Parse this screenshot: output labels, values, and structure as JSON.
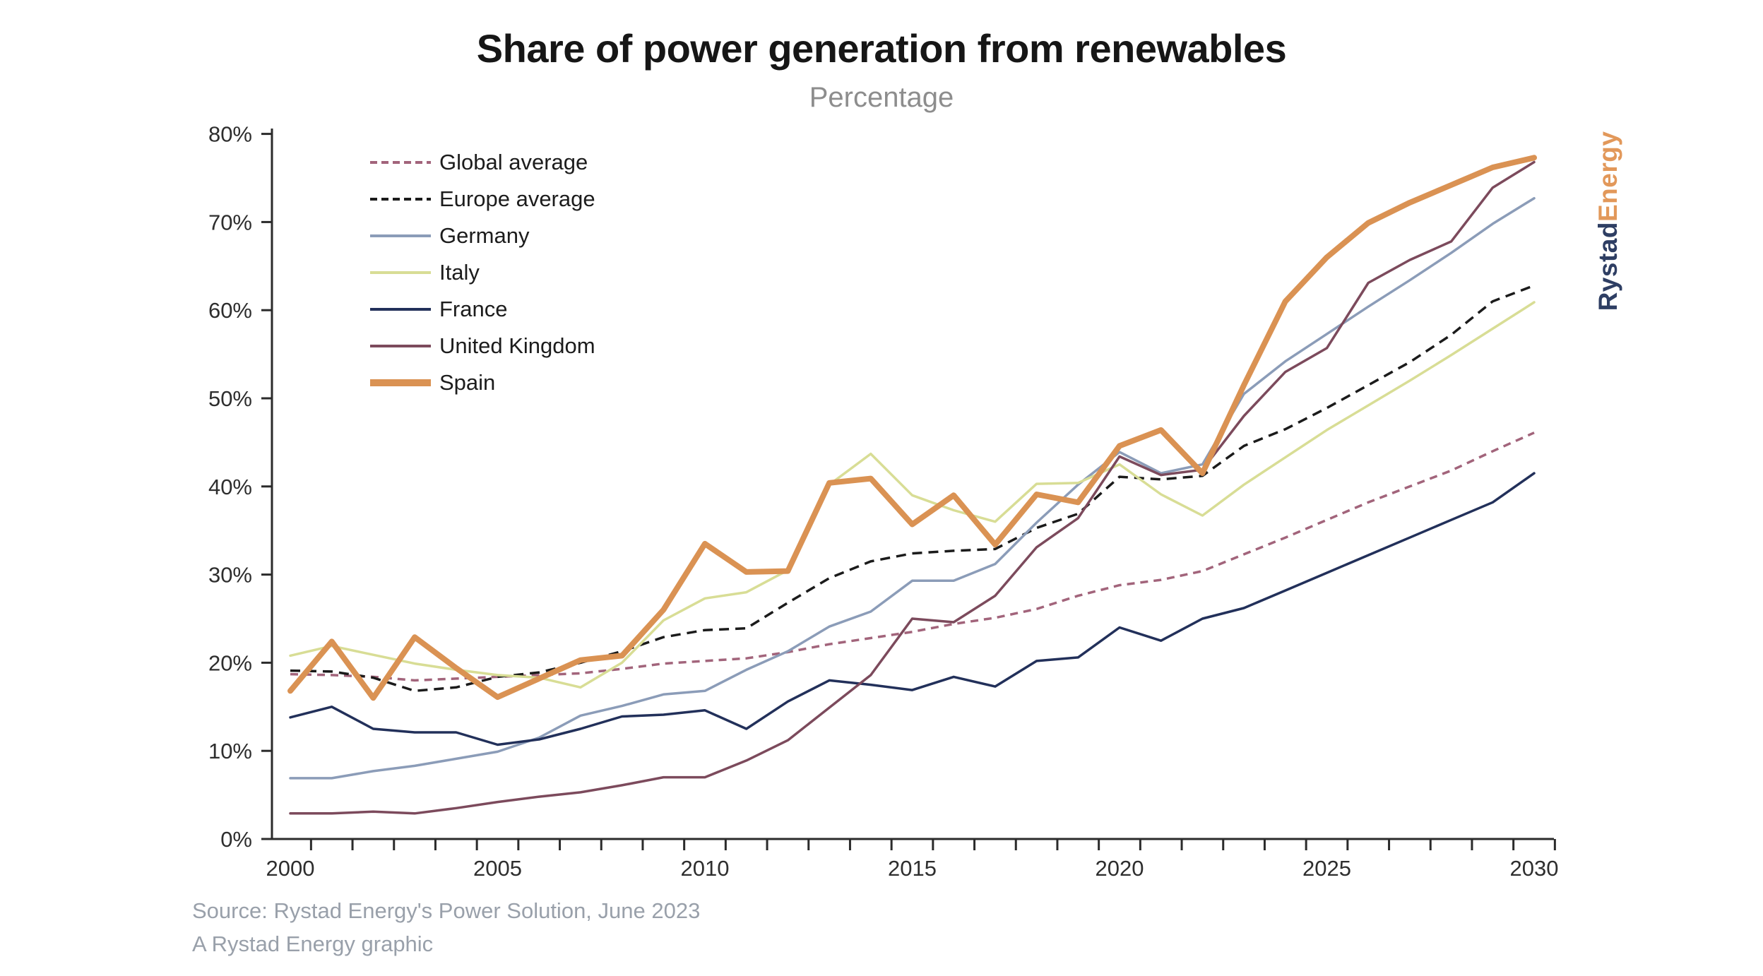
{
  "title": "Share of power generation from renewables",
  "subtitle": "Percentage",
  "source": {
    "line1": "Source: Rystad Energy's Power Solution, June 2023",
    "line2": "A Rystad Energy graphic"
  },
  "logo": {
    "part1": "Rystad",
    "part2": "Energy",
    "part1_color": "#2e3e63",
    "part2_color": "#e2985a"
  },
  "chart_data": {
    "type": "line",
    "title": "Share of power generation from renewables",
    "subtitle": "Percentage",
    "y_unit": "%",
    "ylim": [
      0,
      80
    ],
    "ytick_step": 10,
    "grid": false,
    "legend_position": "top-left-inside",
    "x": [
      2000,
      2001,
      2002,
      2003,
      2004,
      2005,
      2006,
      2007,
      2008,
      2009,
      2010,
      2011,
      2012,
      2013,
      2014,
      2015,
      2016,
      2017,
      2018,
      2019,
      2020,
      2021,
      2022,
      2023,
      2024,
      2025,
      2026,
      2027,
      2028,
      2029,
      2030
    ],
    "xticks": [
      2000,
      2005,
      2010,
      2015,
      2020,
      2025,
      2030
    ],
    "series": [
      {
        "name": "Global average",
        "color": "#a2647b",
        "style": "dashed",
        "width": 3.5,
        "values": [
          18.7,
          18.6,
          18.4,
          18.0,
          18.2,
          18.4,
          18.6,
          18.8,
          19.3,
          19.9,
          20.2,
          20.5,
          21.2,
          22.1,
          22.8,
          23.5,
          24.4,
          25.1,
          26.1,
          27.6,
          28.8,
          29.4,
          30.4,
          32.3,
          34.2,
          36.2,
          38.2,
          40.0,
          41.8,
          44.0,
          46.1
        ]
      },
      {
        "name": "Europe average",
        "color": "#1b1b1b",
        "style": "dashed",
        "width": 3.5,
        "values": [
          19.1,
          19.0,
          18.3,
          16.8,
          17.2,
          18.4,
          18.9,
          20.0,
          21.3,
          22.9,
          23.7,
          23.9,
          26.8,
          29.6,
          31.5,
          32.4,
          32.7,
          32.9,
          35.3,
          36.9,
          41.1,
          40.8,
          41.2,
          44.6,
          46.5,
          48.9,
          51.5,
          54.1,
          57.2,
          61.0,
          62.8
        ]
      },
      {
        "name": "Germany",
        "color": "#8b9cb8",
        "style": "solid",
        "width": 3.5,
        "values": [
          6.9,
          6.9,
          7.7,
          8.3,
          9.1,
          9.9,
          11.5,
          14.0,
          15.1,
          16.4,
          16.8,
          19.2,
          21.3,
          24.1,
          25.8,
          29.3,
          29.3,
          31.2,
          35.9,
          40.2,
          43.9,
          41.5,
          42.5,
          50.5,
          54.2,
          57.3,
          60.4,
          63.4,
          66.5,
          69.8,
          72.7
        ]
      },
      {
        "name": "Italy",
        "color": "#d8dd95",
        "style": "solid",
        "width": 3.5,
        "values": [
          20.8,
          21.9,
          20.9,
          19.9,
          19.2,
          18.6,
          18.3,
          17.2,
          20.0,
          24.8,
          27.3,
          28.0,
          30.5,
          40.2,
          43.7,
          39.0,
          37.3,
          36.0,
          40.3,
          40.4,
          42.5,
          39.1,
          36.7,
          40.2,
          43.3,
          46.4,
          49.2,
          52.0,
          54.9,
          57.9,
          60.9
        ]
      },
      {
        "name": "France",
        "color": "#22305a",
        "style": "solid",
        "width": 3.5,
        "values": [
          13.8,
          15.0,
          12.5,
          12.1,
          12.1,
          10.7,
          11.3,
          12.5,
          13.9,
          14.1,
          14.6,
          12.5,
          15.6,
          18.0,
          17.5,
          16.9,
          18.4,
          17.3,
          20.2,
          20.6,
          24.0,
          22.5,
          25.0,
          26.2,
          28.2,
          30.2,
          32.2,
          34.2,
          36.2,
          38.2,
          41.5
        ]
      },
      {
        "name": "United Kingdom",
        "color": "#7c4a5c",
        "style": "solid",
        "width": 3.5,
        "values": [
          2.9,
          2.9,
          3.1,
          2.9,
          3.5,
          4.2,
          4.8,
          5.3,
          6.1,
          7.0,
          7.0,
          8.9,
          11.2,
          14.9,
          18.6,
          25.0,
          24.6,
          27.6,
          33.1,
          36.4,
          43.4,
          41.3,
          41.9,
          48.0,
          53.0,
          55.7,
          63.1,
          65.7,
          67.8,
          73.9,
          76.8
        ]
      },
      {
        "name": "Spain",
        "color": "#da9253",
        "style": "solid",
        "width": 8,
        "values": [
          16.8,
          22.4,
          16.0,
          22.9,
          19.4,
          16.1,
          18.2,
          20.3,
          20.8,
          26.0,
          33.5,
          30.3,
          30.4,
          40.4,
          40.9,
          35.7,
          39.0,
          33.4,
          39.1,
          38.2,
          44.6,
          46.4,
          41.5,
          51.5,
          61.0,
          66.0,
          69.9,
          72.2,
          74.2,
          76.2,
          77.3
        ]
      }
    ]
  }
}
